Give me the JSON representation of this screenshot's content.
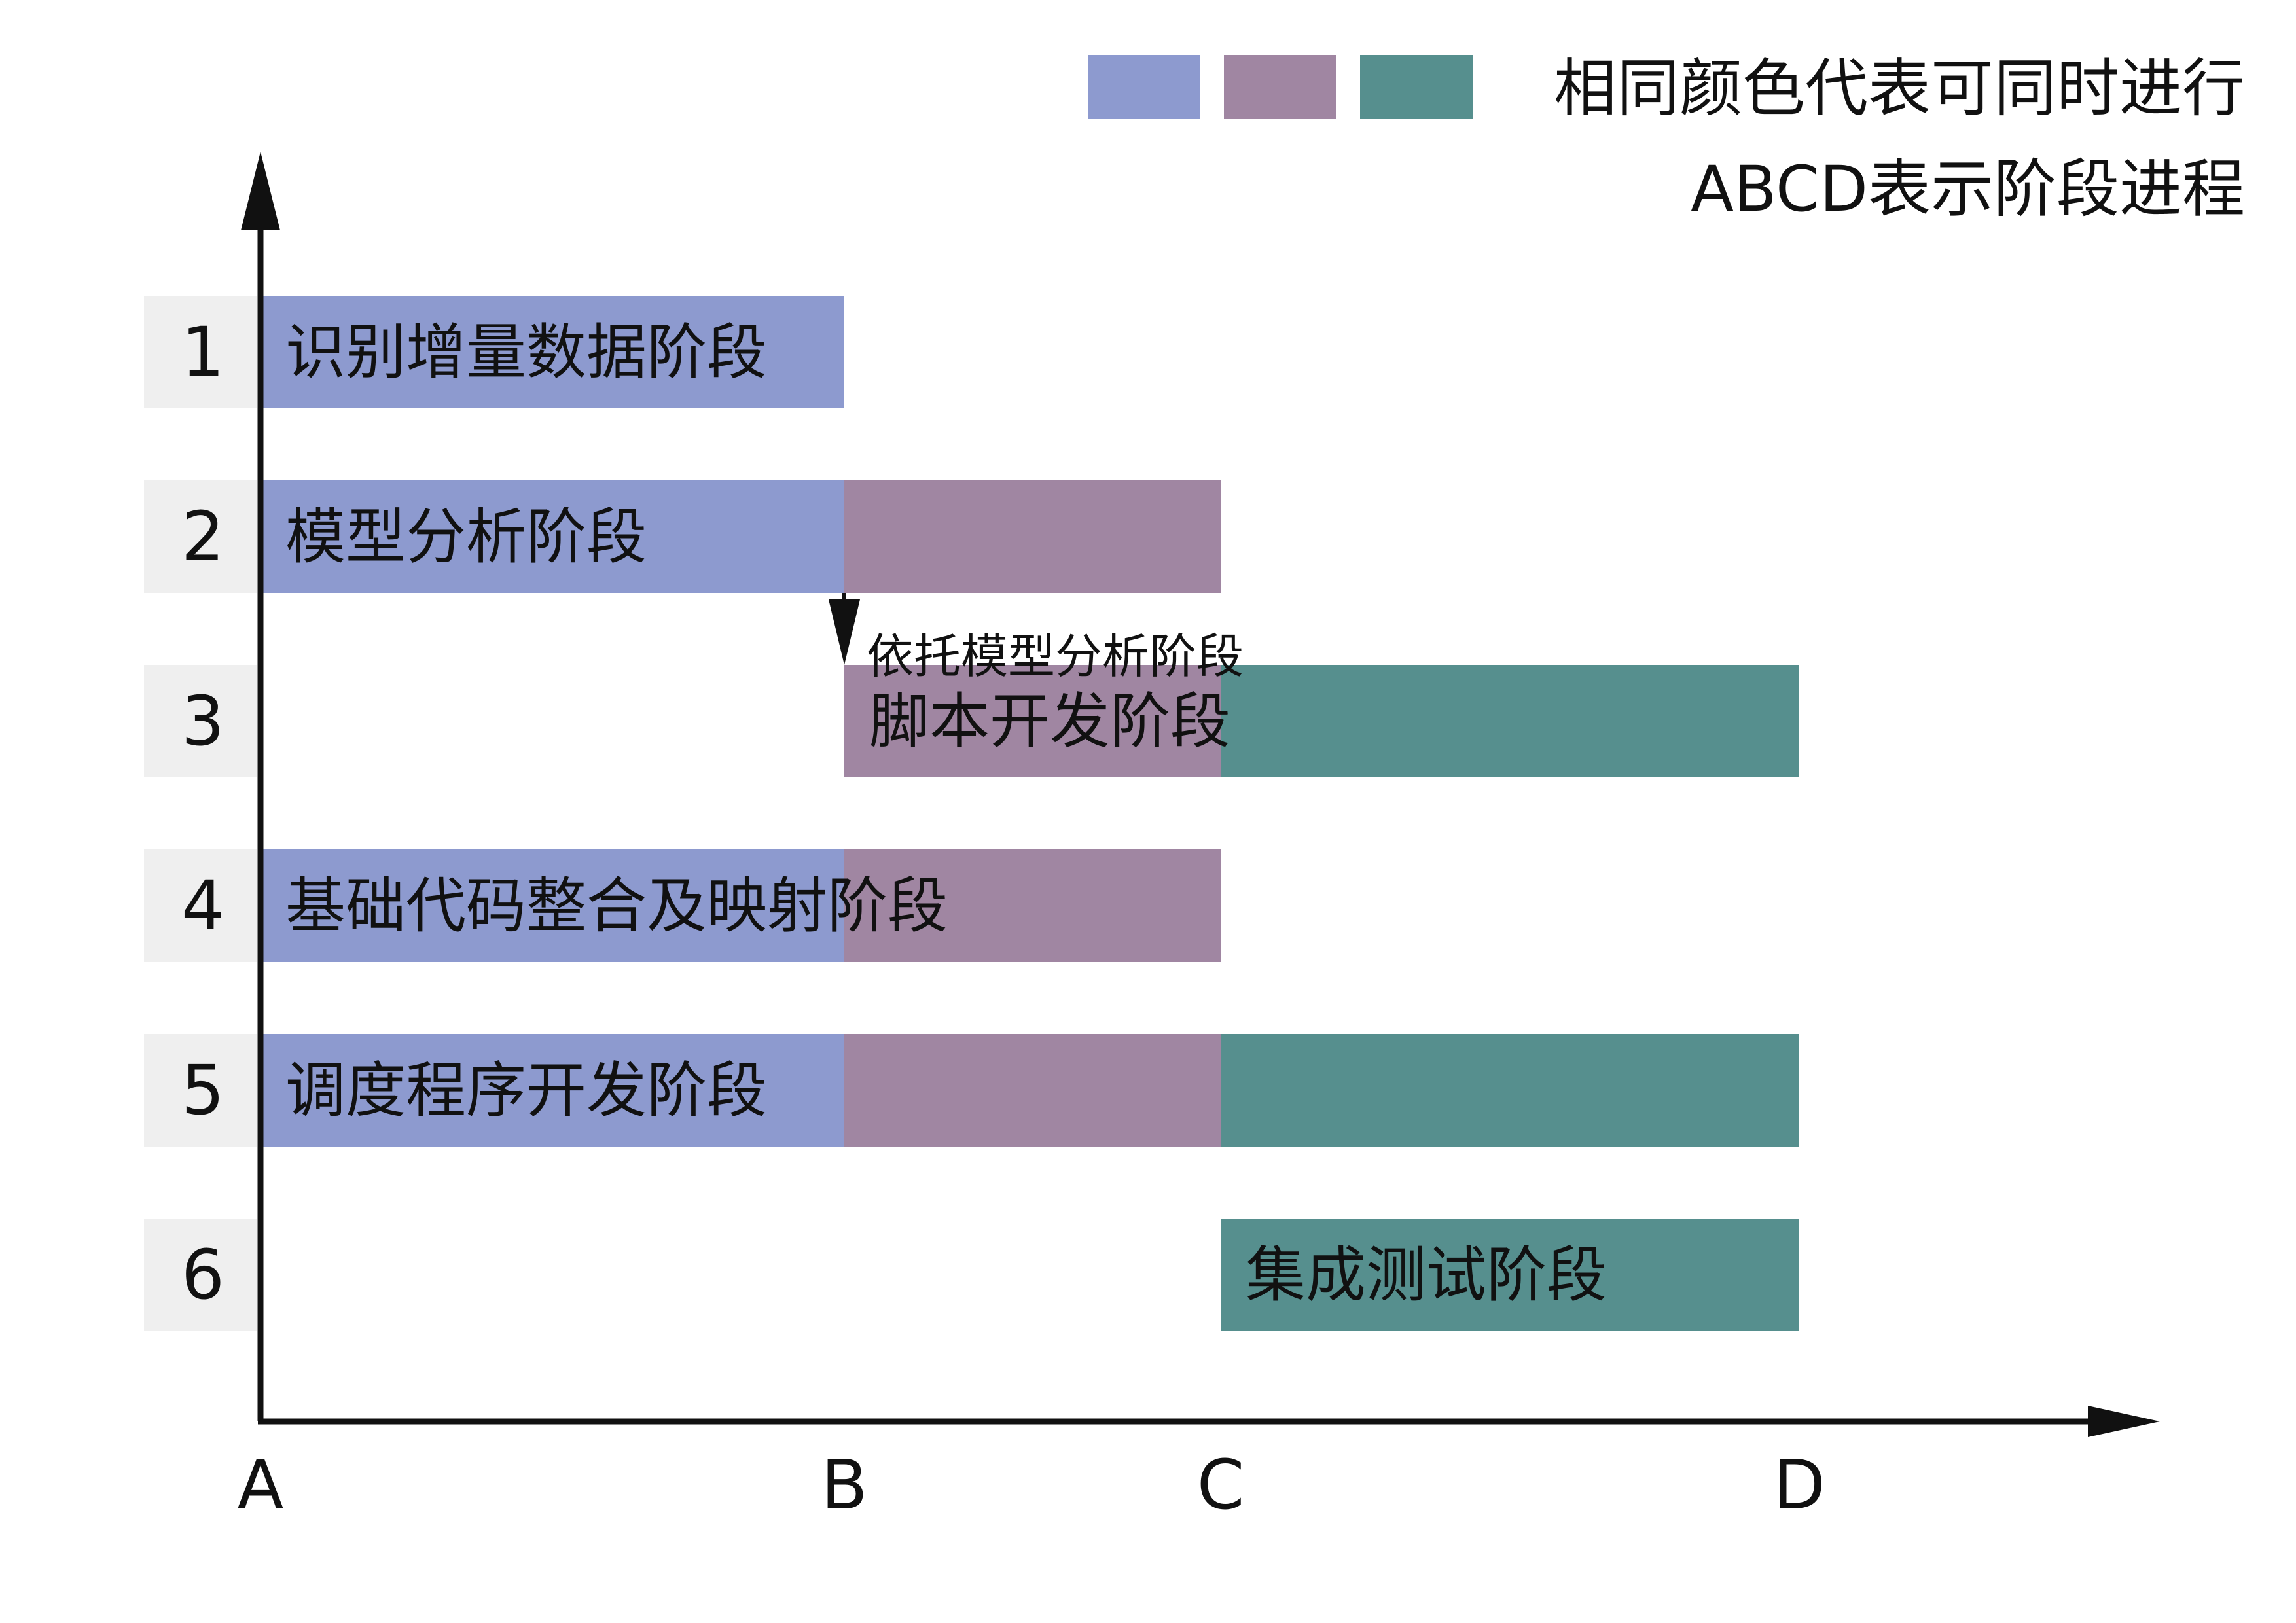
{
  "chart_data": {
    "type": "bar",
    "subtype": "gantt",
    "legend": {
      "placement": "top-right",
      "swatches": [
        "#8d9acf",
        "#a086a2",
        "#568f8e"
      ],
      "lines": [
        "相同颜色代表可同时进行",
        "ABCD表示阶段进程"
      ]
    },
    "x_ticks": [
      "A",
      "B",
      "C",
      "D"
    ],
    "colors": {
      "blue": "#8d9acf",
      "purple": "#a086a2",
      "teal": "#568f8e",
      "rowLabelBg": "#efefef",
      "axis": "#111111"
    },
    "rows": [
      {
        "id": "1",
        "label": "识别增量数据阶段",
        "segments": [
          {
            "start": 0,
            "end": 1,
            "color": "blue"
          }
        ]
      },
      {
        "id": "2",
        "label": "模型分析阶段",
        "segments": [
          {
            "start": 0,
            "end": 1,
            "color": "blue"
          },
          {
            "start": 1,
            "end": 2,
            "color": "purple"
          }
        ]
      },
      {
        "id": "3",
        "label": "脚本开发阶段",
        "segments": [
          {
            "start": 1,
            "end": 2,
            "color": "purple"
          },
          {
            "start": 2,
            "end": 3.1,
            "color": "teal"
          }
        ]
      },
      {
        "id": "4",
        "label": "基础代码整合及映射阶段",
        "segments": [
          {
            "start": 0,
            "end": 1,
            "color": "blue"
          },
          {
            "start": 1,
            "end": 2,
            "color": "purple"
          }
        ]
      },
      {
        "id": "5",
        "label": "调度程序开发阶段",
        "segments": [
          {
            "start": 0,
            "end": 1,
            "color": "blue"
          },
          {
            "start": 1,
            "end": 2,
            "color": "purple"
          },
          {
            "start": 2,
            "end": 3.1,
            "color": "teal"
          }
        ]
      },
      {
        "id": "6",
        "label": "集成测试阶段",
        "segments": [
          {
            "start": 2,
            "end": 3.4,
            "color": "teal"
          }
        ]
      }
    ],
    "annotation": {
      "text": "依托模型分析阶段",
      "from_row": "2",
      "to_row": "3",
      "at": 1
    }
  }
}
